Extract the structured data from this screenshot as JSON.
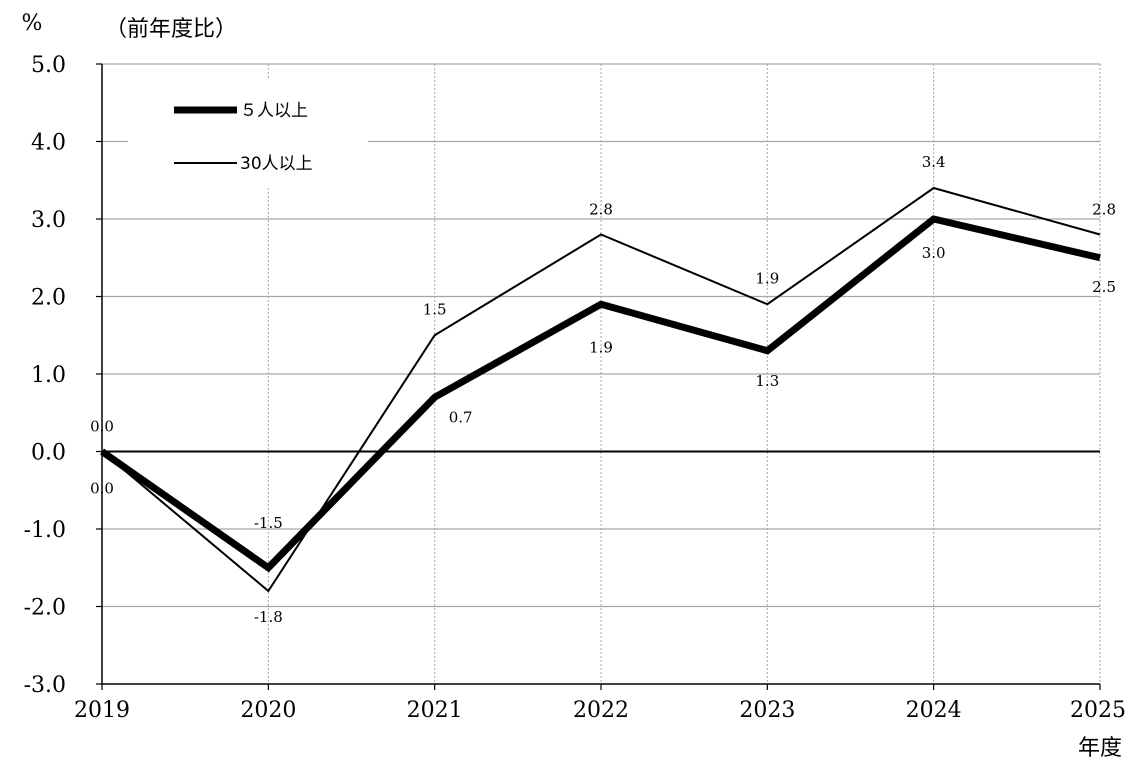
{
  "chart_data": {
    "type": "line",
    "y_unit": "%",
    "y_note": "（前年度比）",
    "x_unit": "年度",
    "categories": [
      "2019",
      "2020",
      "2021",
      "2022",
      "2023",
      "2024",
      "2025"
    ],
    "ylim": [
      -3.0,
      5.0
    ],
    "yticks": [
      "5.0",
      "4.0",
      "3.0",
      "2.0",
      "1.0",
      "0.0",
      "-1.0",
      "-2.0",
      "-3.0"
    ],
    "ytick_values": [
      5,
      4,
      3,
      2,
      1,
      0,
      -1,
      -2,
      -3
    ],
    "grid": true,
    "legend_position": "top-left",
    "series": [
      {
        "name": "５人以上",
        "values": [
          0.0,
          -1.5,
          0.7,
          1.9,
          1.3,
          3.0,
          2.5
        ],
        "labels": [
          "0.0",
          "-1.5",
          "0.7",
          "1.9",
          "1.3",
          "3.0",
          "2.5"
        ],
        "color": "#000000",
        "style": "thick"
      },
      {
        "name": "30人以上",
        "values": [
          0.0,
          -1.8,
          1.5,
          2.8,
          1.9,
          3.4,
          2.8
        ],
        "labels": [
          "0.0",
          "-1.8",
          "1.5",
          "2.8",
          "1.9",
          "3.4",
          "2.8"
        ],
        "color": "#000000",
        "style": "thin"
      }
    ]
  }
}
